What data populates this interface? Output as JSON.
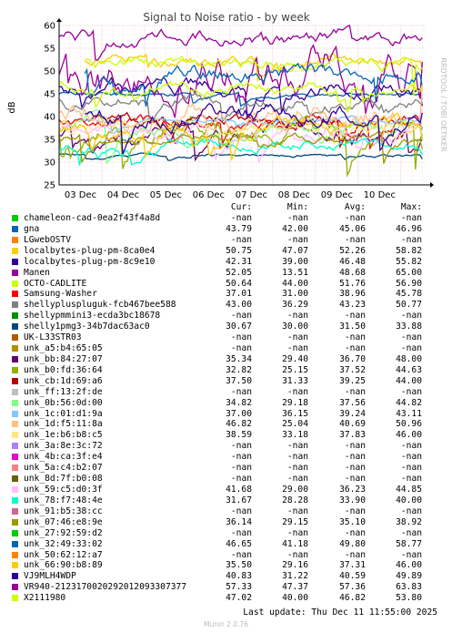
{
  "chart_data": {
    "type": "line",
    "title": "Signal to Noise ratio - by week",
    "ylabel": "dB",
    "ylim": [
      25,
      60
    ],
    "yticks": [
      25,
      30,
      35,
      40,
      45,
      50,
      55,
      60
    ],
    "xlabels": [
      "03 Dec",
      "04 Dec",
      "05 Dec",
      "06 Dec",
      "07 Dec",
      "08 Dec",
      "09 Dec",
      "10 Dec"
    ],
    "xlim_days": [
      0,
      8.6
    ],
    "grid": true,
    "side_label": "RRDTOOL / TOBI OETIKER",
    "columns": [
      "Cur:",
      "Min:",
      "Avg:",
      "Max:"
    ],
    "series": [
      {
        "name": "chameleon-cad-0ea2f43f4a8d",
        "color": "#00cc00",
        "cur": "-nan",
        "min": "-nan",
        "avg": "-nan",
        "max": "-nan"
      },
      {
        "name": "gna",
        "color": "#0066b3",
        "cur": "43.79",
        "min": "42.00",
        "avg": "45.06",
        "max": "46.96"
      },
      {
        "name": "LGwebOSTV",
        "color": "#ff8000",
        "cur": "-nan",
        "min": "-nan",
        "avg": "-nan",
        "max": "-nan"
      },
      {
        "name": "localbytes-plug-pm-8ca0e4",
        "color": "#ffcc00",
        "cur": "50.75",
        "min": "47.07",
        "avg": "52.26",
        "max": "58.82"
      },
      {
        "name": "localbytes-plug-pm-8c9e10",
        "color": "#330099",
        "cur": "42.31",
        "min": "39.00",
        "avg": "46.48",
        "max": "55.82"
      },
      {
        "name": "Manen",
        "color": "#990099",
        "cur": "52.05",
        "min": "13.51",
        "avg": "48.68",
        "max": "65.00"
      },
      {
        "name": "OCTO-CADLITE",
        "color": "#ccff00",
        "cur": "50.64",
        "min": "44.00",
        "avg": "51.76",
        "max": "56.90"
      },
      {
        "name": "Samsung-Washer",
        "color": "#ff0000",
        "cur": "37.01",
        "min": "31.00",
        "avg": "38.96",
        "max": "45.78"
      },
      {
        "name": "shellypluspluguk-fcb467bee588",
        "color": "#808080",
        "cur": "43.00",
        "min": "36.29",
        "avg": "43.23",
        "max": "50.77"
      },
      {
        "name": "shellypmmini3-ecda3bc18678",
        "color": "#008f00",
        "cur": "-nan",
        "min": "-nan",
        "avg": "-nan",
        "max": "-nan"
      },
      {
        "name": "shelly1pmg3-34b7dac63ac0",
        "color": "#00487d",
        "cur": "30.67",
        "min": "30.00",
        "avg": "31.50",
        "max": "33.88"
      },
      {
        "name": "UK-L33STR03",
        "color": "#b35a00",
        "cur": "-nan",
        "min": "-nan",
        "avg": "-nan",
        "max": "-nan"
      },
      {
        "name": "unk_a5:b4:65:05",
        "color": "#b38f00",
        "cur": "-nan",
        "min": "-nan",
        "avg": "-nan",
        "max": "-nan"
      },
      {
        "name": "unk_bb:84:27:07",
        "color": "#6b006b",
        "cur": "35.34",
        "min": "29.40",
        "avg": "36.70",
        "max": "48.00"
      },
      {
        "name": "unk_b0:fd:36:64",
        "color": "#8fb300",
        "cur": "32.82",
        "min": "25.15",
        "avg": "37.52",
        "max": "44.63"
      },
      {
        "name": "unk_cb:1d:69:a6",
        "color": "#b30000",
        "cur": "37.50",
        "min": "31.33",
        "avg": "39.25",
        "max": "44.00"
      },
      {
        "name": "unk_ff:13:2f:de",
        "color": "#bebebe",
        "cur": "-nan",
        "min": "-nan",
        "avg": "-nan",
        "max": "-nan"
      },
      {
        "name": "unk_0b:56:0d:00",
        "color": "#80ff80",
        "cur": "34.82",
        "min": "29.18",
        "avg": "37.56",
        "max": "44.82"
      },
      {
        "name": "unk_1c:01:d1:9a",
        "color": "#80c9ff",
        "cur": "37.00",
        "min": "36.15",
        "avg": "39.24",
        "max": "43.11"
      },
      {
        "name": "unk_1d:f5:11:8a",
        "color": "#ffc080",
        "cur": "46.82",
        "min": "25.04",
        "avg": "40.69",
        "max": "50.96"
      },
      {
        "name": "unk_1e:b6:b8:c5",
        "color": "#ffe680",
        "cur": "38.59",
        "min": "33.18",
        "avg": "37.83",
        "max": "46.00"
      },
      {
        "name": "unk_3a:8e:3c:72",
        "color": "#aa80ff",
        "cur": "-nan",
        "min": "-nan",
        "avg": "-nan",
        "max": "-nan"
      },
      {
        "name": "unk_4b:ca:3f:e4",
        "color": "#ee00cc",
        "cur": "-nan",
        "min": "-nan",
        "avg": "-nan",
        "max": "-nan"
      },
      {
        "name": "unk_5a:c4:b2:07",
        "color": "#ff8080",
        "cur": "-nan",
        "min": "-nan",
        "avg": "-nan",
        "max": "-nan"
      },
      {
        "name": "unk_8d:7f:b0:08",
        "color": "#666600",
        "cur": "-nan",
        "min": "-nan",
        "avg": "-nan",
        "max": "-nan"
      },
      {
        "name": "unk_59:c5:d0:3f",
        "color": "#ffbfff",
        "cur": "41.68",
        "min": "29.00",
        "avg": "36.23",
        "max": "44.85"
      },
      {
        "name": "unk_78:f7:48:4e",
        "color": "#00ffcc",
        "cur": "31.67",
        "min": "28.28",
        "avg": "33.90",
        "max": "40.00"
      },
      {
        "name": "unk_91:b5:38:cc",
        "color": "#cc6699",
        "cur": "-nan",
        "min": "-nan",
        "avg": "-nan",
        "max": "-nan"
      },
      {
        "name": "unk_07:46:e8:9e",
        "color": "#999900",
        "cur": "36.14",
        "min": "29.15",
        "avg": "35.10",
        "max": "38.92"
      },
      {
        "name": "unk_27:92:59:d2",
        "color": "#00cc00",
        "cur": "-nan",
        "min": "-nan",
        "avg": "-nan",
        "max": "-nan"
      },
      {
        "name": "unk_32:49:33:02",
        "color": "#0066b3",
        "cur": "46.65",
        "min": "41.18",
        "avg": "49.80",
        "max": "58.77"
      },
      {
        "name": "unk_50:62:12:a7",
        "color": "#ff8000",
        "cur": "-nan",
        "min": "-nan",
        "avg": "-nan",
        "max": "-nan"
      },
      {
        "name": "unk_66:90:b8:89",
        "color": "#ffcc00",
        "cur": "35.50",
        "min": "29.16",
        "avg": "37.31",
        "max": "46.00"
      },
      {
        "name": "VJ9MLH4WDP",
        "color": "#330099",
        "cur": "40.83",
        "min": "31.22",
        "avg": "40.59",
        "max": "49.89"
      },
      {
        "name": "VR940-212317002029201209330737​7",
        "color": "#990099",
        "cur": "57.33",
        "min": "47.37",
        "avg": "57.36",
        "max": "63.83"
      },
      {
        "name": "X2111980",
        "color": "#ccff00",
        "cur": "47.02",
        "min": "40.00",
        "avg": "46.82",
        "max": "53.80"
      }
    ]
  },
  "footer": {
    "last_update": "Last update: Thu Dec 11 11:55:00 2025",
    "munin_version": "Munin 2.0.76"
  }
}
